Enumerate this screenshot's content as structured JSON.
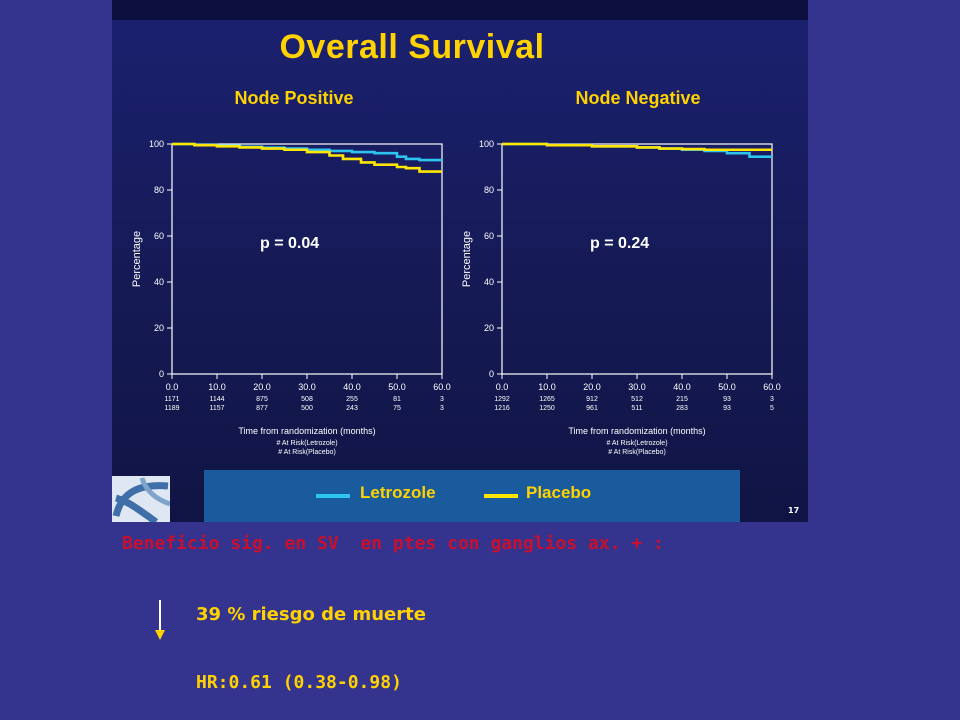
{
  "slide": {
    "title": "Overall Survival",
    "slide_number": "17",
    "legend": [
      {
        "label": "Letrozole",
        "color": "#2ec4f0"
      },
      {
        "label": "Placebo",
        "color": "#ffe600"
      }
    ],
    "benefit_text": "Beneficio sig. en SV  en ptes con ganglios ax. + :",
    "risk_text": "39 % riesgo de muerte",
    "hr_text": "HR:0.61 (0.38-0.98)"
  },
  "chart_data": [
    {
      "type": "line",
      "title": "Node Positive",
      "xlabel": "Time from randomization (months)",
      "ylabel": "Percentage",
      "xlim": [
        0,
        60
      ],
      "ylim": [
        0,
        100
      ],
      "xticks": [
        "0.0",
        "10.0",
        "20.0",
        "30.0",
        "40.0",
        "50.0",
        "60.0"
      ],
      "yticks": [
        "0",
        "20",
        "40",
        "60",
        "80",
        "100"
      ],
      "annotation": "p = 0.04",
      "at_risk": {
        "labels": [
          "# At Risk(Letrozole)",
          "# At Risk(Placebo)"
        ],
        "rows": [
          [
            "1171",
            "1144",
            "875",
            "508",
            "255",
            "81",
            "3"
          ],
          [
            "1189",
            "1157",
            "877",
            "500",
            "243",
            "75",
            "3"
          ]
        ]
      },
      "series": [
        {
          "name": "Letrozole",
          "color": "#2ec4f0",
          "x": [
            0,
            5,
            10,
            15,
            20,
            25,
            30,
            35,
            40,
            45,
            50,
            52,
            55,
            60
          ],
          "y": [
            100,
            99.6,
            99.2,
            98.8,
            98.4,
            98,
            97.5,
            97,
            96.5,
            96,
            94.5,
            93.5,
            93,
            93
          ]
        },
        {
          "name": "Placebo",
          "color": "#ffe600",
          "x": [
            0,
            5,
            10,
            15,
            20,
            25,
            30,
            35,
            38,
            42,
            45,
            50,
            52,
            55,
            60
          ],
          "y": [
            100,
            99.5,
            99,
            98.5,
            98,
            97.5,
            96.5,
            95,
            93.5,
            92,
            91,
            90,
            89.5,
            88,
            88
          ]
        }
      ]
    },
    {
      "type": "line",
      "title": "Node Negative",
      "xlabel": "Time from randomization (months)",
      "ylabel": "Percentage",
      "xlim": [
        0,
        60
      ],
      "ylim": [
        0,
        100
      ],
      "xticks": [
        "0.0",
        "10.0",
        "20.0",
        "30.0",
        "40.0",
        "50.0",
        "60.0"
      ],
      "yticks": [
        "0",
        "20",
        "40",
        "60",
        "80",
        "100"
      ],
      "annotation": "p = 0.24",
      "at_risk": {
        "labels": [
          "# At Risk(Letrozole)",
          "# At Risk(Placebo)"
        ],
        "rows": [
          [
            "1292",
            "1265",
            "912",
            "512",
            "215",
            "93",
            "3"
          ],
          [
            "1216",
            "1250",
            "961",
            "511",
            "283",
            "93",
            "5"
          ]
        ]
      },
      "series": [
        {
          "name": "Letrozole",
          "color": "#2ec4f0",
          "x": [
            0,
            10,
            20,
            30,
            35,
            40,
            45,
            50,
            55,
            60
          ],
          "y": [
            100,
            99.5,
            99,
            98.5,
            98,
            97.5,
            97,
            96,
            94.5,
            94.5
          ]
        },
        {
          "name": "Placebo",
          "color": "#ffe600",
          "x": [
            0,
            10,
            20,
            30,
            35,
            40,
            45,
            50,
            55,
            60
          ],
          "y": [
            100,
            99.5,
            99,
            98.5,
            98,
            97.8,
            97.5,
            97.5,
            97.5,
            97.5
          ]
        }
      ]
    }
  ]
}
